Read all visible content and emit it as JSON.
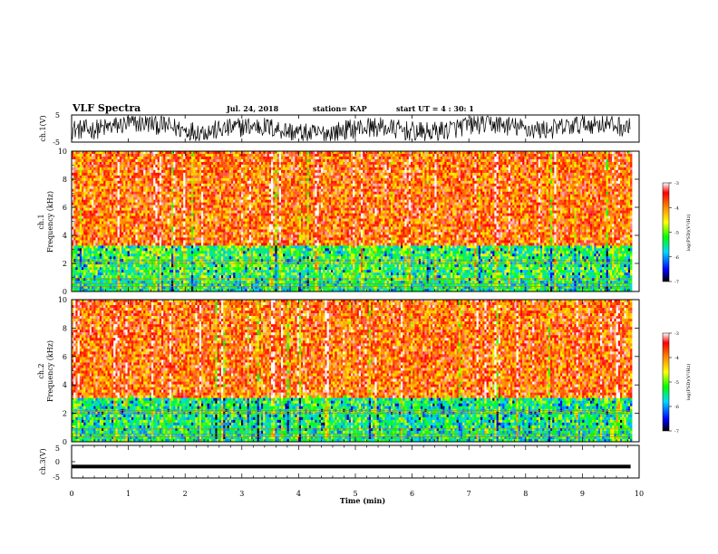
{
  "header": {
    "title": "VLF Spectra",
    "date": "Jul. 24, 2018",
    "station": "station= KAP",
    "start": "start UT =  4 : 30: 1"
  },
  "colors": {
    "background": "#ffffff",
    "colormap": [
      "#000000",
      "#0000ff",
      "#00d8ff",
      "#00ff00",
      "#ffff00",
      "#ff8c00",
      "#ff0000",
      "#ffffff"
    ]
  },
  "chart_data": [
    {
      "type": "line",
      "id": "ch1-waveform",
      "ylabel": "ch.1(V)",
      "ylim": [
        -5,
        5
      ],
      "yticks": [
        "5",
        "-5"
      ],
      "xlim": [
        0,
        10
      ],
      "description_values": "noisy waveform fluctuating roughly between -5 and 5 V"
    },
    {
      "type": "heatmap",
      "id": "ch1-spectrogram",
      "ylabel": "ch.1\nFrequency (kHz)",
      "ylabel_line1": "ch.1",
      "ylabel_line2": "Frequency (kHz)",
      "xlim": [
        0,
        10
      ],
      "ylim": [
        0,
        10
      ],
      "yticks": [
        "0",
        "2",
        "4",
        "6",
        "8",
        "10"
      ],
      "data_extent_x": [
        0,
        9.85
      ],
      "bands": [
        {
          "from": 0,
          "to": 0.8,
          "level": -5.5
        },
        {
          "from": 0.8,
          "to": 3.2,
          "level": -5.2
        },
        {
          "from": 3.2,
          "to": 10,
          "level": -3.8
        }
      ],
      "colorbar": {
        "label": "log(PSD)(V²/Hz)",
        "ticks": [
          "-3",
          "-4",
          "-5",
          "-6",
          "-7"
        ],
        "range": [
          -7,
          -3
        ]
      }
    },
    {
      "type": "heatmap",
      "id": "ch2-spectrogram",
      "ylabel": "ch.2\nFrequency (kHz)",
      "ylabel_line1": "ch.2",
      "ylabel_line2": "Frequency (kHz)",
      "xlim": [
        0,
        10
      ],
      "ylim": [
        0,
        10
      ],
      "yticks": [
        "0",
        "2",
        "4",
        "6",
        "8",
        "10"
      ],
      "data_extent_x": [
        0,
        9.85
      ],
      "bands": [
        {
          "from": 0,
          "to": 0.8,
          "level": -5.5
        },
        {
          "from": 0.8,
          "to": 3.0,
          "level": -5.4
        },
        {
          "from": 3.0,
          "to": 10,
          "level": -3.8
        }
      ],
      "colorbar": {
        "label": "log(PSD)(V²/Hz)",
        "ticks": [
          "-3",
          "-4",
          "-5",
          "-6",
          "-7"
        ],
        "range": [
          -7,
          -3
        ]
      }
    },
    {
      "type": "line",
      "id": "ch3-waveform",
      "ylabel": "ch.3(V)",
      "ylim": [
        -5,
        5
      ],
      "yticks": [
        "5",
        "0",
        "-5"
      ],
      "xlim": [
        0,
        10
      ],
      "xlabel": "Time (min)",
      "xticks": [
        "0",
        "1",
        "2",
        "3",
        "4",
        "5",
        "6",
        "7",
        "8",
        "9",
        "10"
      ],
      "x": [
        0,
        9.85
      ],
      "y": [
        -1.5,
        -1.5
      ]
    }
  ]
}
